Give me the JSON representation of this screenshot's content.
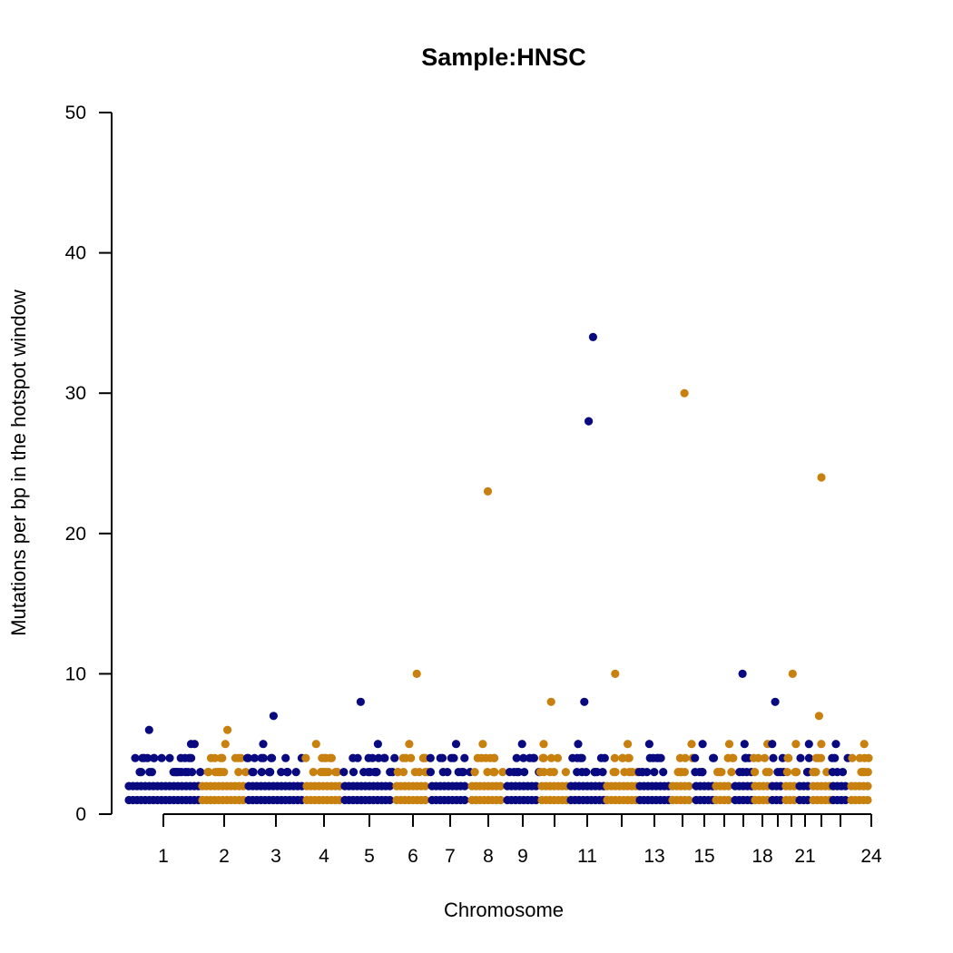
{
  "chart_data": {
    "type": "scatter",
    "title": "Sample:HNSC",
    "xlabel": "Chromosome",
    "ylabel": "Mutations per bp in the hotspot window",
    "ylim": [
      0,
      50
    ],
    "yticks": [
      0,
      10,
      20,
      30,
      40,
      50
    ],
    "grid": false,
    "legend": "none",
    "colors": {
      "odd": "#0a0a80",
      "even": "#c8800f"
    },
    "chromosomes": [
      "1",
      "2",
      "3",
      "4",
      "5",
      "6",
      "7",
      "8",
      "9",
      "10",
      "11",
      "12",
      "13",
      "14",
      "15",
      "16",
      "17",
      "18",
      "19",
      "20",
      "21",
      "22",
      "23",
      "24"
    ],
    "xtick_labels": [
      "1",
      "2",
      "3",
      "4",
      "5",
      "6",
      "7",
      "8",
      "9",
      "11",
      "13",
      "15",
      "18",
      "21",
      "24"
    ],
    "notable_points": [
      {
        "chromosome": "1",
        "value": 6
      },
      {
        "chromosome": "2",
        "value": 6
      },
      {
        "chromosome": "3",
        "value": 7
      },
      {
        "chromosome": "5",
        "value": 8
      },
      {
        "chromosome": "6",
        "value": 10
      },
      {
        "chromosome": "8",
        "value": 23
      },
      {
        "chromosome": "10",
        "value": 8
      },
      {
        "chromosome": "11",
        "value": 34
      },
      {
        "chromosome": "11",
        "value": 28
      },
      {
        "chromosome": "11",
        "value": 8
      },
      {
        "chromosome": "12",
        "value": 10
      },
      {
        "chromosome": "14",
        "value": 30
      },
      {
        "chromosome": "17",
        "value": 10
      },
      {
        "chromosome": "19",
        "value": 8
      },
      {
        "chromosome": "20",
        "value": 10
      },
      {
        "chromosome": "22",
        "value": 24
      },
      {
        "chromosome": "22",
        "value": 7
      }
    ]
  }
}
